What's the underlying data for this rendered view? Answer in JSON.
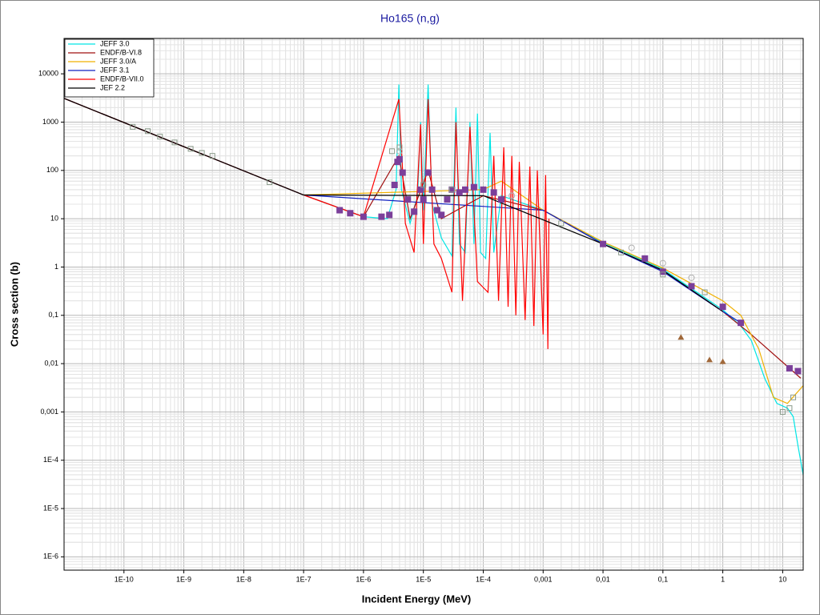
{
  "chart_data": {
    "type": "line",
    "title": "Ho165 (n,g)",
    "x_label": "Incident Energy (MeV)",
    "y_label": "Cross section (b)",
    "xscale": "log",
    "yscale": "log",
    "grid": true,
    "legend": "top-left",
    "xlim": [
      1e-11,
      22
    ],
    "ylim": [
      5.3e-07,
      54000
    ],
    "xticks": [
      {
        "value": 1e-10,
        "label": "1E-10"
      },
      {
        "value": 1e-09,
        "label": "1E-9"
      },
      {
        "value": 1e-08,
        "label": "1E-8"
      },
      {
        "value": 1e-07,
        "label": "1E-7"
      },
      {
        "value": 1e-06,
        "label": "1E-6"
      },
      {
        "value": 1e-05,
        "label": "1E-5"
      },
      {
        "value": 0.0001,
        "label": "1E-4"
      },
      {
        "value": 0.001,
        "label": "0,001"
      },
      {
        "value": 0.01,
        "label": "0,01"
      },
      {
        "value": 0.1,
        "label": "0,1"
      },
      1,
      10
    ],
    "yticks": [
      {
        "value": 1e-06,
        "label": "1E-6"
      },
      {
        "value": 1e-05,
        "label": "1E-5"
      },
      {
        "value": 0.0001,
        "label": "1E-4"
      },
      {
        "value": 0.001,
        "label": "0,001"
      },
      {
        "value": 0.01,
        "label": "0,01"
      },
      {
        "value": 0.1,
        "label": "0,1"
      },
      1,
      10,
      100,
      1000,
      10000
    ],
    "series": [
      {
        "name": "JEFF 3.0",
        "color": "#00e5e5",
        "x": [
          1e-11,
          1e-09,
          1e-07,
          1e-06,
          2.5e-06,
          3.5e-06,
          3.9e-06,
          4.3e-06,
          6e-06,
          8e-06,
          9e-06,
          1e-05,
          1.2e-05,
          1.4e-05,
          2e-05,
          3e-05,
          3.5e-05,
          4e-05,
          5e-05,
          6e-05,
          7e-05,
          8e-05,
          9e-05,
          0.00011,
          0.00013,
          0.00015,
          0.0002,
          0.001,
          0.01,
          0.1,
          1,
          2,
          3,
          5,
          8,
          12,
          15,
          18,
          22
        ],
        "values": [
          3100,
          310,
          31,
          11,
          10,
          40,
          6000,
          40,
          8,
          30,
          1000,
          15,
          6000,
          20,
          4,
          1.7,
          2000,
          3,
          2,
          1000,
          3,
          1500,
          2,
          1.5,
          600,
          2,
          30,
          15,
          3.2,
          0.9,
          0.13,
          0.06,
          0.03,
          0.005,
          0.0015,
          0.0012,
          0.0008,
          0.0002,
          5e-05
        ]
      },
      {
        "name": "ENDF/B-VI.8",
        "color": "#a01010",
        "x": [
          1e-11,
          1e-07,
          1e-06,
          3.9e-06,
          6e-06,
          1.2e-05,
          2e-05,
          0.0001,
          0.001,
          0.01,
          0.1,
          1,
          3,
          20
        ],
        "values": [
          3100,
          31,
          11,
          200,
          10,
          100,
          10,
          30,
          15,
          3,
          0.85,
          0.12,
          0.04,
          0.005
        ]
      },
      {
        "name": "JEFF 3.0/A",
        "color": "#f0b000",
        "x": [
          1e-11,
          1e-07,
          0.0001,
          0.0002,
          0.001,
          0.01,
          0.1,
          1,
          2,
          4,
          7,
          12,
          22
        ],
        "values": [
          3100,
          31,
          40,
          60,
          15,
          3.3,
          0.95,
          0.2,
          0.1,
          0.02,
          0.002,
          0.0015,
          0.0035
        ]
      },
      {
        "name": "JEFF 3.1",
        "color": "#1020c0",
        "x": [
          1e-11,
          1e-07,
          0.001,
          0.01,
          0.1,
          1,
          2
        ],
        "values": [
          3100,
          31,
          15,
          3,
          0.8,
          0.12,
          0.07
        ]
      },
      {
        "name": "ENDF/B-VII.0",
        "color": "#ff0000",
        "x": [
          1e-11,
          1e-07,
          1e-06,
          3.9e-06,
          5e-06,
          7e-06,
          9e-06,
          1e-05,
          1.2e-05,
          1.5e-05,
          2e-05,
          3e-05,
          3.5e-05,
          4.5e-05,
          6e-05,
          8e-05,
          0.00012,
          0.00015,
          0.00018,
          0.00022,
          0.00026,
          0.0003,
          0.00035,
          0.0004,
          0.0005,
          0.0006,
          0.0007,
          0.0008,
          0.001,
          0.0011,
          0.0012,
          0.00125
        ],
        "values": [
          3100,
          31,
          11,
          3000,
          8,
          2,
          900,
          3,
          3000,
          3,
          1.5,
          0.3,
          1000,
          0.2,
          800,
          0.5,
          0.3,
          200,
          0.2,
          300,
          0.15,
          200,
          0.1,
          150,
          0.08,
          120,
          0.06,
          100,
          0.04,
          80,
          0.02,
          10
        ]
      },
      {
        "name": "JEF 2.2",
        "color": "#000000",
        "x": [
          1e-11,
          1e-07,
          0.0001,
          0.01,
          0.1,
          1
        ],
        "values": [
          3100,
          31,
          30,
          3,
          0.85,
          0.12
        ]
      }
    ],
    "markers": [
      {
        "shape": "square",
        "color": "#7b3f9a",
        "x": [
          4e-07,
          6e-07,
          1e-06,
          2e-06,
          2.7e-06,
          3.3e-06,
          3.7e-06,
          4e-06,
          4.5e-06,
          5.5e-06,
          7e-06,
          9e-06,
          1e-05,
          1.2e-05,
          1.4e-05,
          1.7e-05,
          2e-05,
          2.5e-05,
          3e-05,
          4e-05,
          5e-05,
          7e-05,
          0.0001,
          0.00015,
          0.0002,
          0.01,
          0.05,
          0.1,
          0.3,
          1,
          2,
          13,
          18
        ],
        "values": [
          15,
          13,
          11,
          11,
          12,
          50,
          150,
          170,
          90,
          25,
          14,
          40,
          25,
          90,
          40,
          15,
          12,
          25,
          40,
          35,
          40,
          45,
          40,
          35,
          25,
          3,
          1.5,
          0.8,
          0.4,
          0.15,
          0.07,
          0.008,
          0.007
        ]
      },
      {
        "shape": "open-square",
        "color": "#8a9a8a",
        "x": [
          1.4e-10,
          2.5e-10,
          4e-10,
          7e-10,
          1.3e-09,
          2e-09,
          3e-09,
          2.7e-08,
          3e-06,
          4e-06,
          1e-05,
          3e-05,
          0.002,
          0.02,
          0.1,
          0.5,
          10,
          13,
          15
        ],
        "values": [
          800,
          650,
          500,
          380,
          280,
          230,
          200,
          57,
          250,
          300,
          50,
          40,
          8,
          2,
          0.7,
          0.3,
          0.001,
          0.0012,
          0.002
        ]
      },
      {
        "shape": "triangle",
        "color": "#a0683a",
        "x": [
          0.2,
          0.6,
          1
        ],
        "values": [
          0.035,
          0.012,
          0.011
        ]
      },
      {
        "shape": "circle",
        "color": "#b0b0b0",
        "x": [
          4e-06,
          0.0003,
          0.03,
          0.1,
          0.3
        ],
        "values": [
          250,
          30,
          2.5,
          1.2,
          0.6
        ]
      }
    ]
  }
}
